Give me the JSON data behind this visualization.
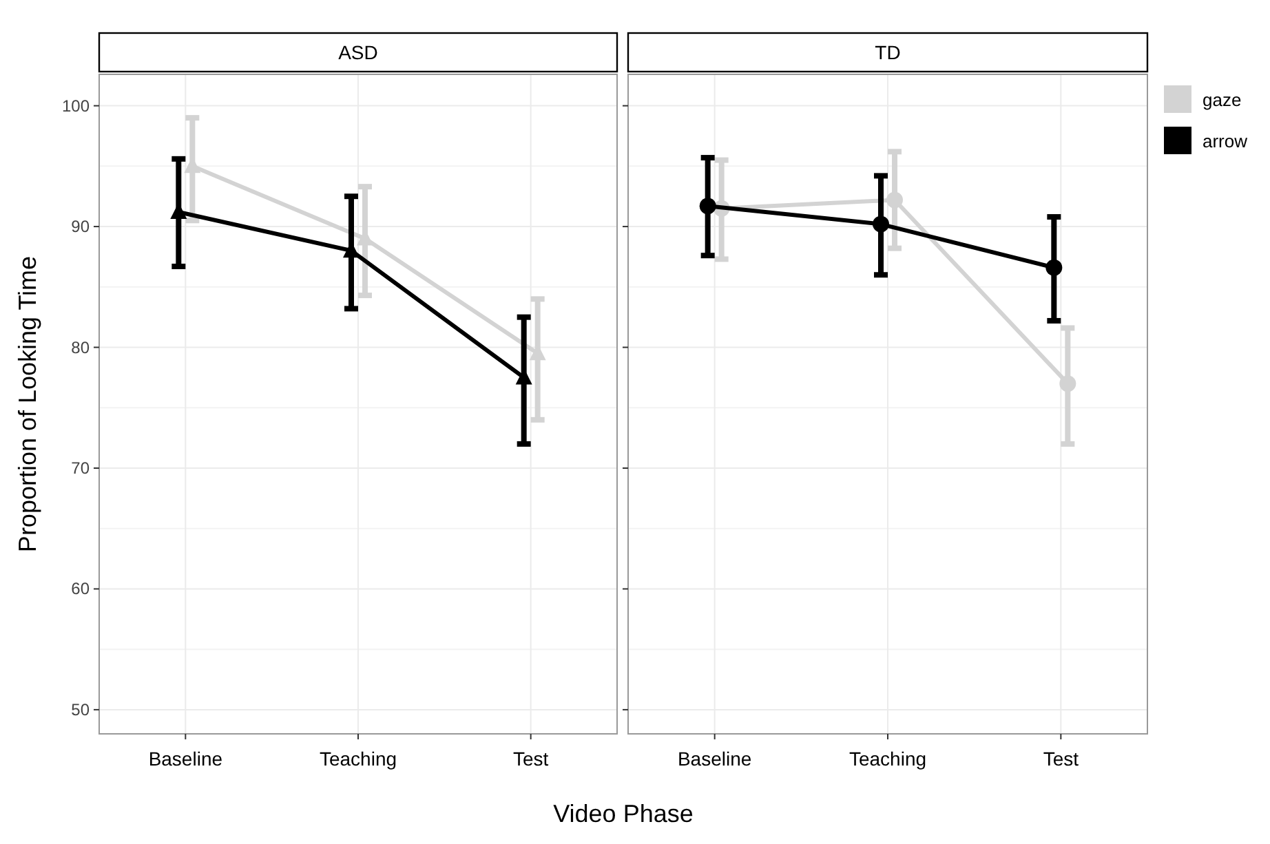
{
  "chart_data": [
    {
      "type": "line",
      "title": "ASD",
      "xlabel": "Video Phase",
      "ylabel": "Proportion of Looking Time",
      "categories": [
        "Baseline",
        "Teaching",
        "Test"
      ],
      "ylim": [
        48,
        102.6
      ],
      "yticks": [
        50,
        60,
        70,
        80,
        90,
        100
      ],
      "grid": true,
      "marker": "triangle",
      "series": [
        {
          "color": "#d3d3d3",
          "values": [
            95,
            89,
            79.5
          ],
          "errors": [
            [
              90.5,
              99
            ],
            [
              84.3,
              93.3
            ],
            [
              74,
              84
            ]
          ]
        },
        {
          "color": "#000000",
          "values": [
            91.2,
            88,
            77.5
          ],
          "errors": [
            [
              86.7,
              95.6
            ],
            [
              83.2,
              92.5
            ],
            [
              72,
              82.5
            ]
          ]
        }
      ]
    },
    {
      "type": "line",
      "title": "TD",
      "categories": [
        "Baseline",
        "Teaching",
        "Test"
      ],
      "ylim": [
        48,
        102.6
      ],
      "tick_labels": "x",
      "grid": true,
      "marker": "circle",
      "legend": "right",
      "series": [
        {
          "name": "gaze",
          "color": "#d3d3d3",
          "values": [
            91.5,
            92.2,
            77
          ],
          "errors": [
            [
              87.3,
              95.5
            ],
            [
              88.2,
              96.2
            ],
            [
              72,
              81.6
            ]
          ]
        },
        {
          "name": "arrow",
          "color": "#000000",
          "values": [
            91.7,
            90.2,
            86.6
          ],
          "errors": [
            [
              87.6,
              95.7
            ],
            [
              86,
              94.2
            ],
            [
              82.2,
              90.8
            ]
          ]
        }
      ]
    }
  ]
}
